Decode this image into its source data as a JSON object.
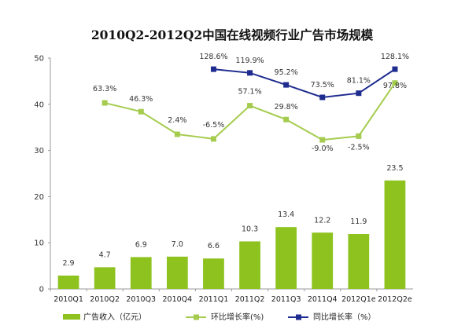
{
  "chart_data": {
    "type": "bar+line",
    "title": "2010Q2-2012Q2中国在线视频行业广告市场规模",
    "categories": [
      "2010Q1",
      "2010Q2",
      "2010Q3",
      "2010Q4",
      "2011Q1",
      "2011Q2",
      "2011Q3",
      "2011Q4",
      "2012Q1e",
      "2012Q2e"
    ],
    "ylim": [
      0,
      50
    ],
    "yticks": [
      0,
      10,
      20,
      30,
      40,
      50
    ],
    "grid": false,
    "legend_position": "bottom",
    "series": [
      {
        "name": "广告收入（亿元）",
        "kind": "bar",
        "color": "#8dc21f",
        "values": [
          2.9,
          4.7,
          6.9,
          7.0,
          6.6,
          10.3,
          13.4,
          12.2,
          11.9,
          23.5
        ],
        "labels": [
          "2.9",
          "4.7",
          "6.9",
          "7.0",
          "6.6",
          "10.3",
          "13.4",
          "12.2",
          "11.9",
          "23.5"
        ]
      },
      {
        "name": "环比增长率(%)",
        "kind": "line",
        "color": "#a5cc4f",
        "values": [
          null,
          40.3,
          38.4,
          33.5,
          32.5,
          39.7,
          36.7,
          32.3,
          33.1,
          44.6
        ],
        "labels": [
          null,
          "63.3%",
          "46.3%",
          "2.4%",
          "-6.5%",
          "57.1%",
          "29.8%",
          "-9.0%",
          "-2.5%",
          "97.8%"
        ]
      },
      {
        "name": "同比增长率（%）",
        "kind": "line",
        "color": "#1f2c8f",
        "values": [
          null,
          null,
          null,
          null,
          47.6,
          46.8,
          44.2,
          41.5,
          42.4,
          47.6
        ],
        "labels": [
          null,
          null,
          null,
          null,
          "128.6%",
          "119.9%",
          "95.2%",
          "73.5%",
          "81.1%",
          "128.1%"
        ]
      }
    ]
  }
}
